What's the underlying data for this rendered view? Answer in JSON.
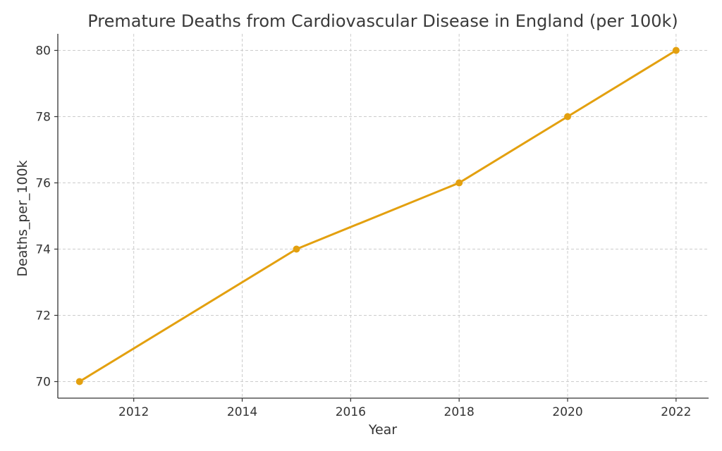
{
  "chart_data": {
    "type": "line",
    "title": "Premature Deaths from Cardiovascular Disease in England (per 100k)",
    "xlabel": "Year",
    "ylabel": "Deaths_per_100k",
    "x": [
      2011,
      2015,
      2018,
      2020,
      2022
    ],
    "series": [
      {
        "values": [
          70,
          74,
          76,
          78,
          80
        ],
        "color": "#e3a00f"
      }
    ],
    "xlim": [
      2010.6,
      2022.6
    ],
    "ylim": [
      69.5,
      80.5
    ],
    "xticks": [
      2012,
      2014,
      2016,
      2018,
      2020,
      2022
    ],
    "yticks": [
      70,
      72,
      74,
      76,
      78,
      80
    ],
    "grid": true,
    "legend": "none"
  }
}
